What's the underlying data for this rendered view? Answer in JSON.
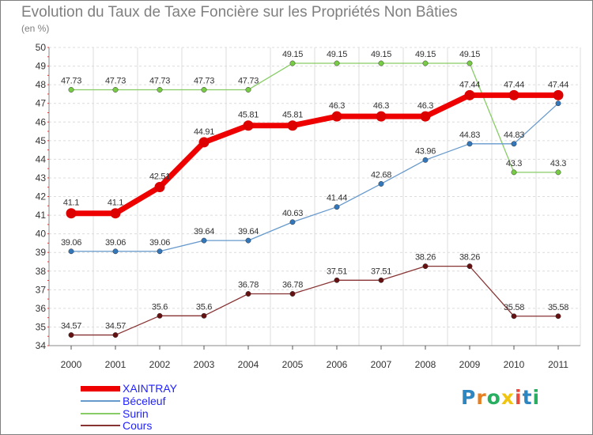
{
  "title": "Evolution du Taux de Taxe Foncière sur les Propriétés Non Bâties",
  "unit_label": "(en %)",
  "brand": "Proxiti",
  "brand_colors": [
    "#2e86c1",
    "#e67e22",
    "#27ae60",
    "#f1c40f",
    "#e74c3c",
    "#2e86c1",
    "#27ae60"
  ],
  "chart_data": {
    "type": "line",
    "title": "Evolution du Taux de Taxe Foncière sur les Propriétés Non Bâties",
    "ylabel": "(en %)",
    "xlabel": "",
    "ylim": [
      34,
      50
    ],
    "yticks": [
      34,
      35,
      36,
      37,
      38,
      39,
      40,
      41,
      42,
      43,
      44,
      45,
      46,
      47,
      48,
      49,
      50
    ],
    "grid": true,
    "legend_position": "bottom-left",
    "x": [
      "2000",
      "2001",
      "2002",
      "2003",
      "2004",
      "2005",
      "2006",
      "2007",
      "2008",
      "2009",
      "2010",
      "2011"
    ],
    "series": [
      {
        "name": "XAINTRAY",
        "color": "#ee0000",
        "marker_color": "#dd0000",
        "width": 7,
        "values": [
          41.1,
          41.1,
          42.51,
          44.91,
          45.81,
          45.81,
          46.3,
          46.3,
          46.3,
          47.44,
          47.44,
          47.44
        ],
        "labels": [
          "41.1",
          "41.1",
          "42.51",
          "44.91",
          "45.81",
          "45.81",
          "46.3",
          "46.3",
          "46.3",
          "47.44",
          "47.44",
          "47.44"
        ]
      },
      {
        "name": "Béceleuf",
        "color": "#6699cc",
        "marker_color": "#3377bb",
        "width": 1.3,
        "values": [
          39.06,
          39.06,
          39.06,
          39.64,
          39.64,
          40.63,
          41.44,
          42.68,
          43.96,
          44.83,
          44.83,
          47.0
        ],
        "labels": [
          "39.06",
          "39.06",
          "39.06",
          "39.64",
          "39.64",
          "40.63",
          "41.44",
          "42.68",
          "43.96",
          "44.83",
          "44.83",
          ""
        ]
      },
      {
        "name": "Surin",
        "color": "#88cc66",
        "marker_color": "#77cc44",
        "width": 1.3,
        "values": [
          47.73,
          47.73,
          47.73,
          47.73,
          47.73,
          49.15,
          49.15,
          49.15,
          49.15,
          49.15,
          43.3,
          43.3
        ],
        "labels": [
          "47.73",
          "47.73",
          "47.73",
          "47.73",
          "47.73",
          "49.15",
          "49.15",
          "49.15",
          "49.15",
          "49.15",
          "43.3",
          "43.3"
        ]
      },
      {
        "name": "Cours",
        "color": "#883333",
        "marker_color": "#661111",
        "width": 1.3,
        "values": [
          34.57,
          34.57,
          35.6,
          35.6,
          36.78,
          36.78,
          37.51,
          37.51,
          38.26,
          38.26,
          35.58,
          35.58
        ],
        "labels": [
          "34.57",
          "34.57",
          "35.6",
          "35.6",
          "36.78",
          "36.78",
          "37.51",
          "37.51",
          "38.26",
          "38.26",
          "35.58",
          "35.58"
        ]
      }
    ]
  }
}
